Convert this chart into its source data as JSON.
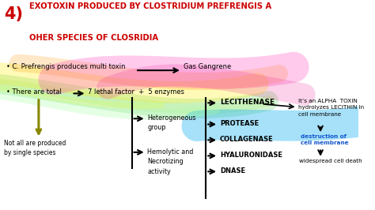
{
  "bg_color": "#ffffff",
  "title_number": "4)",
  "title_number_color": "#cc0000",
  "title_line1": "EXOTOXIN PRODUCED BY CLOSTRIDIUM PREFRENGIS A",
  "title_line2": "OHER SPECIES OF CLOSRIDIA",
  "title_color": "#cc0000",
  "bullet1": "• C. Prefrengis produces multi toxin",
  "arrow1_label": "Gas Gangrene",
  "bullet2": "• There are total",
  "arrow2_label": "7 lethal factor  +  5 enzymes",
  "note_text": "Not all are produced\nby single species",
  "box1": "Heterogeneous\ngroup",
  "box2": "Hemolytic and\nNecrotizing\nactivity",
  "lecithenase": "LECITHENASE",
  "alpha_toxin": "It’s an ALPHA  TOXIN\nhydrolyzes LECITHIN in\ncell membrane",
  "destruction": "destruction of\ncell membrane",
  "widespread": "widespread cell death",
  "enzymes": [
    "PROTEASE",
    "COLLAGENASE",
    "HYALURONIDASE",
    "DNASE"
  ],
  "text_color": "#000000"
}
